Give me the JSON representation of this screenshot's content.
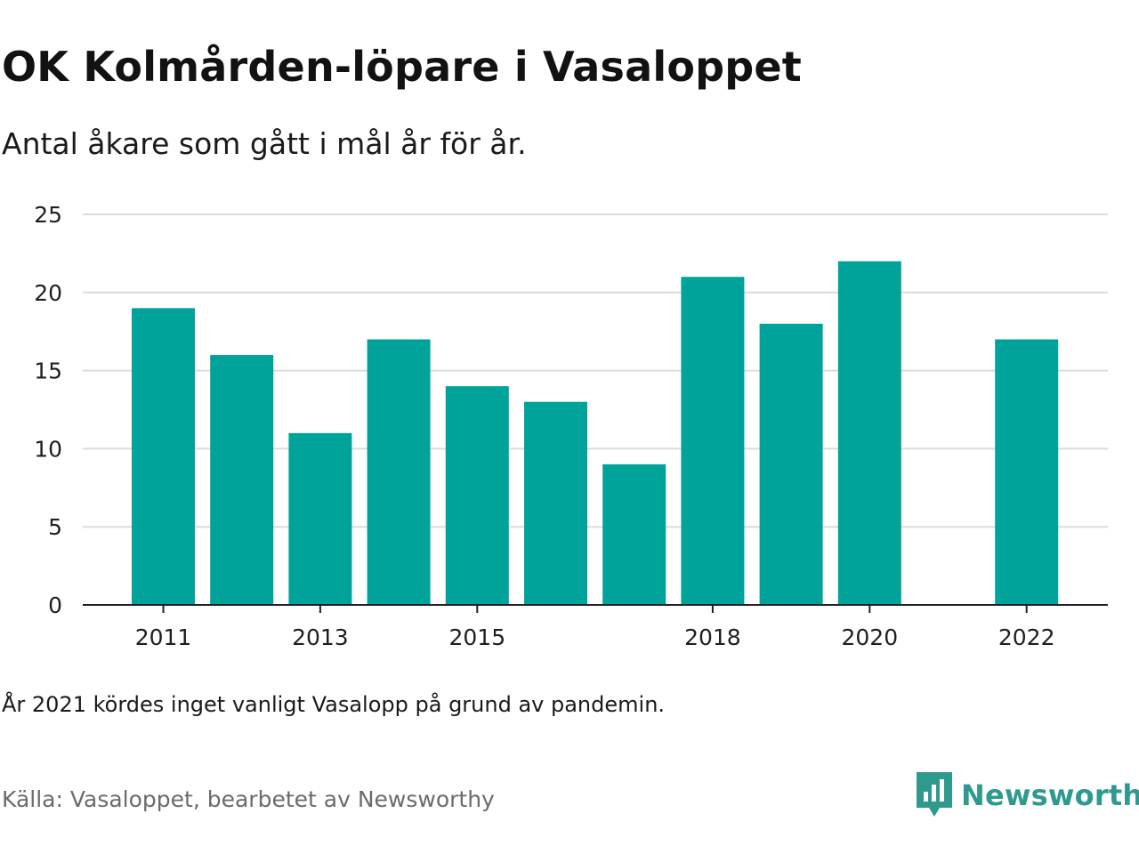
{
  "title": "OK Kolmården-löpare i Vasaloppet",
  "subtitle": "Antal åkare som gått i mål år för år.",
  "note": "År 2021 kördes inget vanligt Vasalopp på grund av pandemin.",
  "source": "Källa: Vasaloppet, bearbetet av Newsworthy",
  "brand": {
    "name": "Newsworthy",
    "color": "#2e9a8e",
    "icon": "newsworthy-logo-icon"
  },
  "chart_data": {
    "type": "bar",
    "categories": [
      2011,
      2012,
      2013,
      2014,
      2015,
      2016,
      2017,
      2018,
      2019,
      2020,
      2021,
      2022
    ],
    "values": [
      19,
      16,
      11,
      17,
      14,
      13,
      9,
      21,
      18,
      22,
      null,
      17
    ],
    "x_tick_labels": [
      "2011",
      "2013",
      "2015",
      "2018",
      "2020",
      "2022"
    ],
    "y_ticks": [
      0,
      5,
      10,
      15,
      20,
      25
    ],
    "ylim": [
      0,
      25
    ],
    "bar_color": "#00a39a",
    "grid": true,
    "xlabel": "",
    "ylabel": ""
  }
}
